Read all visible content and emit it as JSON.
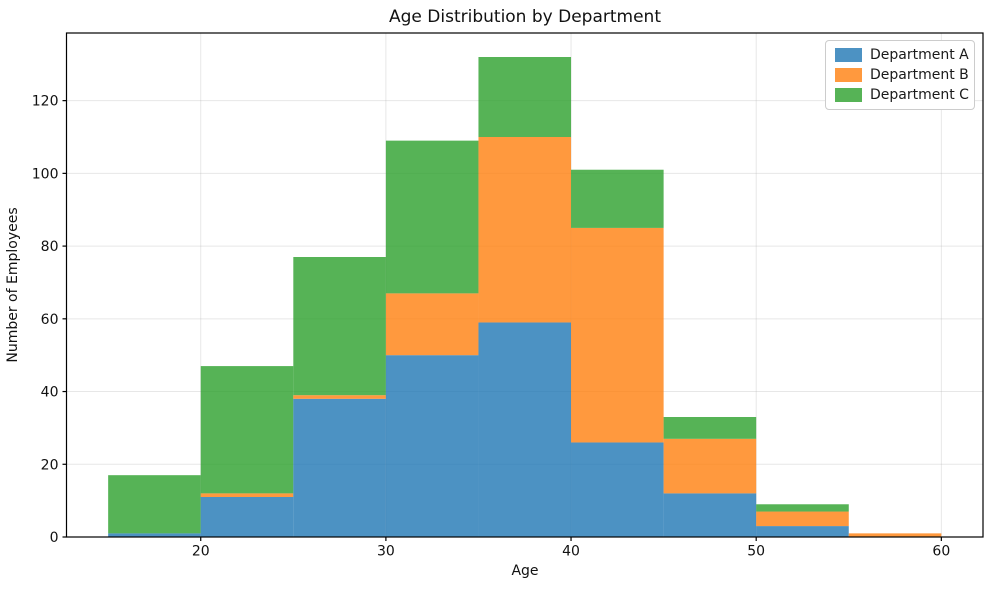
{
  "chart_data": {
    "type": "bar",
    "subtype": "stacked_histogram",
    "title": "Age Distribution by Department",
    "xlabel": "Age",
    "ylabel": "Number of Employees",
    "bin_edges": [
      15,
      20,
      25,
      30,
      35,
      40,
      45,
      50,
      55,
      60
    ],
    "series": [
      {
        "name": "Department A",
        "color": "#1f77b4",
        "values": [
          1,
          11,
          38,
          50,
          59,
          26,
          12,
          3,
          0
        ]
      },
      {
        "name": "Department B",
        "color": "#ff7f0e",
        "values": [
          0,
          1,
          1,
          17,
          51,
          59,
          15,
          4,
          1
        ]
      },
      {
        "name": "Department C",
        "color": "#2ca02c",
        "values": [
          16,
          35,
          38,
          42,
          22,
          16,
          6,
          2,
          0
        ]
      }
    ],
    "stacked": true,
    "stack_totals": [
      17,
      47,
      77,
      109,
      132,
      101,
      33,
      9,
      1
    ],
    "bar_opacity": 0.8,
    "xticks": [
      20,
      30,
      40,
      50,
      60
    ],
    "yticks": [
      0,
      20,
      40,
      60,
      80,
      100,
      120
    ],
    "xlim": [
      12.75,
      62.25
    ],
    "ylim": [
      0,
      138.6
    ],
    "grid": true,
    "grid_color": "#b0b0b0",
    "grid_opacity": 0.3,
    "axis_color": "#000000",
    "legend_position": "upper right"
  }
}
